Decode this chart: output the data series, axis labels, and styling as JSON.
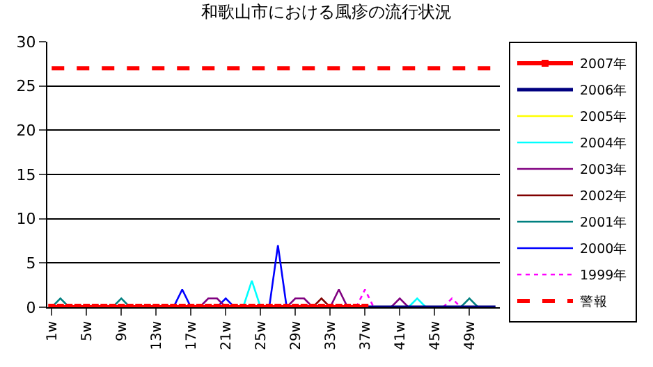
{
  "chart_data": {
    "type": "line",
    "title": "和歌山市における風疹の流行状況",
    "categories": [
      "1w",
      null,
      null,
      null,
      "5w",
      null,
      null,
      null,
      "9w",
      null,
      null,
      null,
      "13w",
      null,
      null,
      null,
      "17w",
      null,
      null,
      null,
      "21w",
      null,
      null,
      null,
      "25w",
      null,
      null,
      null,
      "29w",
      null,
      null,
      null,
      "33w",
      null,
      null,
      null,
      "37w",
      null,
      null,
      null,
      "41w",
      null,
      null,
      null,
      "45w",
      null,
      null,
      null,
      "49w",
      null,
      null,
      null
    ],
    "ylim": [
      0,
      30
    ],
    "yticks": [
      0,
      5,
      10,
      15,
      20,
      25,
      30
    ],
    "grid": "y",
    "legend": "right",
    "series": [
      {
        "name": "2007年",
        "color": "#ff0000",
        "marker": "square",
        "values": [
          0,
          0,
          0,
          0,
          0,
          0,
          0,
          0,
          0,
          0,
          0,
          0,
          0,
          0,
          0,
          0,
          0,
          0,
          0,
          0,
          0,
          0,
          0,
          0,
          0,
          0,
          0,
          0,
          0,
          0,
          0,
          0,
          0,
          0,
          0,
          0,
          0,
          null,
          null,
          null,
          null,
          null,
          null,
          null,
          null,
          null,
          null,
          null,
          null,
          null,
          null,
          null
        ]
      },
      {
        "name": "2006年",
        "color": "#000080",
        "values": [
          null,
          null,
          null,
          null,
          null,
          null,
          null,
          null,
          null,
          null,
          null,
          null,
          null,
          null,
          null,
          null,
          null,
          null,
          null,
          null,
          null,
          null,
          null,
          null,
          null,
          null,
          null,
          null,
          null,
          null,
          null,
          null,
          null,
          null,
          null,
          null,
          0,
          0,
          0,
          0,
          0,
          0,
          0,
          0,
          0,
          0,
          0,
          0,
          0,
          0,
          0,
          0
        ]
      },
      {
        "name": "2005年",
        "color": "#ffff00",
        "values": [
          null,
          null,
          null,
          null,
          null,
          null,
          null,
          null,
          null,
          null,
          null,
          null,
          null,
          null,
          null,
          null,
          null,
          null,
          null,
          null,
          null,
          null,
          null,
          null,
          null,
          null,
          null,
          null,
          null,
          null,
          null,
          null,
          null,
          null,
          null,
          null,
          null,
          null,
          null,
          null,
          null,
          null,
          null,
          null,
          null,
          null,
          null,
          null,
          null,
          null,
          null,
          null
        ]
      },
      {
        "name": "2004年",
        "color": "#00ffff",
        "values": [
          null,
          null,
          null,
          null,
          null,
          null,
          null,
          null,
          null,
          null,
          null,
          null,
          null,
          null,
          null,
          null,
          null,
          null,
          null,
          null,
          null,
          null,
          0,
          3,
          0,
          null,
          null,
          null,
          null,
          null,
          null,
          null,
          null,
          null,
          null,
          null,
          null,
          null,
          null,
          null,
          null,
          0,
          1,
          0,
          null,
          null,
          null,
          null,
          null,
          null,
          null,
          null
        ]
      },
      {
        "name": "2003年",
        "color": "#800080",
        "values": [
          null,
          null,
          null,
          null,
          null,
          null,
          null,
          null,
          null,
          null,
          null,
          null,
          null,
          null,
          null,
          null,
          null,
          0,
          1,
          1,
          0,
          null,
          null,
          null,
          null,
          null,
          null,
          0,
          1,
          1,
          0,
          null,
          0,
          2,
          0,
          null,
          null,
          null,
          null,
          0,
          1,
          0,
          null,
          null,
          null,
          null,
          null,
          null,
          null,
          null,
          null,
          null
        ]
      },
      {
        "name": "2002年",
        "color": "#800000",
        "values": [
          null,
          null,
          null,
          null,
          null,
          null,
          null,
          null,
          null,
          null,
          null,
          null,
          null,
          null,
          null,
          null,
          null,
          null,
          null,
          null,
          null,
          null,
          null,
          null,
          null,
          null,
          null,
          null,
          null,
          null,
          0,
          1,
          0,
          null,
          null,
          null,
          null,
          null,
          null,
          null,
          null,
          null,
          null,
          null,
          null,
          null,
          null,
          null,
          null,
          null,
          null,
          null
        ]
      },
      {
        "name": "2001年",
        "color": "#008080",
        "values": [
          0,
          1,
          0,
          null,
          null,
          null,
          null,
          0,
          1,
          0,
          null,
          null,
          null,
          null,
          null,
          null,
          null,
          null,
          null,
          null,
          null,
          null,
          null,
          null,
          null,
          null,
          null,
          null,
          null,
          null,
          null,
          null,
          null,
          null,
          null,
          null,
          null,
          null,
          null,
          null,
          null,
          null,
          null,
          null,
          null,
          null,
          null,
          0,
          1,
          0,
          null,
          null
        ]
      },
      {
        "name": "2000年",
        "color": "#0000ff",
        "values": [
          null,
          null,
          null,
          null,
          null,
          null,
          null,
          null,
          null,
          null,
          null,
          null,
          null,
          null,
          0,
          2,
          0,
          null,
          null,
          0,
          1,
          0,
          null,
          null,
          null,
          0,
          7,
          0,
          null,
          null,
          null,
          null,
          null,
          null,
          null,
          null,
          null,
          null,
          null,
          null,
          null,
          null,
          null,
          null,
          null,
          null,
          null,
          null,
          null,
          null,
          null,
          null
        ]
      },
      {
        "name": "1999年",
        "color": "#ff00ff",
        "line_style": "dotted",
        "values": [
          null,
          null,
          null,
          null,
          null,
          null,
          null,
          null,
          null,
          null,
          null,
          null,
          null,
          null,
          null,
          null,
          null,
          null,
          null,
          null,
          null,
          null,
          null,
          null,
          null,
          null,
          null,
          null,
          null,
          null,
          null,
          null,
          null,
          null,
          null,
          0,
          2,
          0,
          null,
          null,
          null,
          null,
          null,
          null,
          null,
          0,
          1,
          0,
          null,
          null,
          null,
          null
        ]
      },
      {
        "name": "警報",
        "color": "#ff0000",
        "line_style": "dashed",
        "values": [
          27,
          27,
          27,
          27,
          27,
          27,
          27,
          27,
          27,
          27,
          27,
          27,
          27,
          27,
          27,
          27,
          27,
          27,
          27,
          27,
          27,
          27,
          27,
          27,
          27,
          27,
          27,
          27,
          27,
          27,
          27,
          27,
          27,
          27,
          27,
          27,
          27,
          27,
          27,
          27,
          27,
          27,
          27,
          27,
          27,
          27,
          27,
          27,
          27,
          27,
          27,
          27
        ]
      }
    ]
  }
}
